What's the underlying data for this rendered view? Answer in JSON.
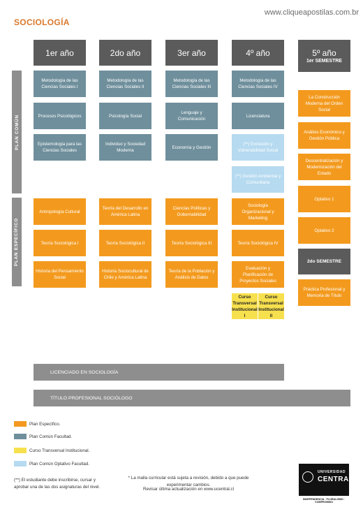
{
  "page_title": "SOCIOLOGÍA",
  "website": "www.cliqueapostilas.com.br",
  "years": [
    {
      "label": "1er año",
      "sub": ""
    },
    {
      "label": "2do año",
      "sub": ""
    },
    {
      "label": "3er año",
      "sub": ""
    },
    {
      "label": "4º año",
      "sub": ""
    },
    {
      "label": "5º año",
      "sub": "1er SEMESTRE"
    }
  ],
  "sidebar": {
    "comun": "PLAN COMÚN",
    "especifico": "PLAN ESPECÍFICO"
  },
  "courses": {
    "y1": [
      "Metodología de las Ciencias Sociales I",
      "Procesos Psicológicos",
      "Epistemología para las Ciencias Sociales",
      "Antropología Cultural",
      "Teoría Sociológica I",
      "Historia del Pensamiento Social"
    ],
    "y2": [
      "Metodología de las Ciencias Sociales II",
      "Psicología Social",
      "Individuo y Sociedad Moderna",
      "Teoría del Desarrollo en América Latina",
      "Teoría Sociológica II",
      "Historia Sociocultural de Chile y América Latina"
    ],
    "y3": [
      "Metodología de las Ciencias Sociales III",
      "Lenguaje y Comunicación",
      "Economía y Gestión",
      "Ciencias Políticas y Gobernabilidad",
      "Teoría Sociológica III",
      "Teoría de la Población y Análisis de Datos"
    ],
    "y4": [
      "Metodología de las Ciencias Sociales IV",
      "Licenciatura",
      "(**) Exclusión y Vulnerabilidad Social",
      "(**) Gestión Ambiental y Comunitaria",
      "Sociología Organizacional y Marketing",
      "Teoría Sociológica IV",
      "Evaluación y Planificación de Proyectos Sociales",
      "Curso Transversal Institucional I",
      "Curso Transversal Institucional II"
    ],
    "y5": [
      "La Construcción Moderna del Orden Social",
      "Análisis Económico y Gestión Pública",
      "Descentralización y Modernización del Estado",
      "Optativo 1",
      "Optativo 2",
      "2do SEMESTRE",
      "Práctica Profesional y Memoria de Título"
    ]
  },
  "bars": {
    "licenciado": "LICENCIADO EN SOCIOLOGÍA",
    "titulo": "TÍTULO PROFESIONAL SOCIÓLOGO"
  },
  "legend": [
    {
      "label": "Plan Específico.",
      "color": "#f39a1e"
    },
    {
      "label": "Plan Común Facultad.",
      "color": "#6f8f9c"
    },
    {
      "label": "Curso Transversal Institucional.",
      "color": "#f7e04e"
    },
    {
      "label": "Plan Común Optativo Facultad.",
      "color": "#b6daf0"
    }
  ],
  "footnote_left": "(**) El estudiante debe inscribirse, cursar y aprobar una de las dos asignaturas del nivel.",
  "footnote_center_1": "* La malla curricular está sujeta a revisión, debido a que puede experimentar cambios.",
  "footnote_center_2": "Revisar última actualización en www.ucentral.cl",
  "logo": {
    "uni": "UNIVERSIDAD",
    "central": "CENTRAL",
    "motto": "INDEPENDENCIA · PLURALISMO · COMPROMISO"
  }
}
